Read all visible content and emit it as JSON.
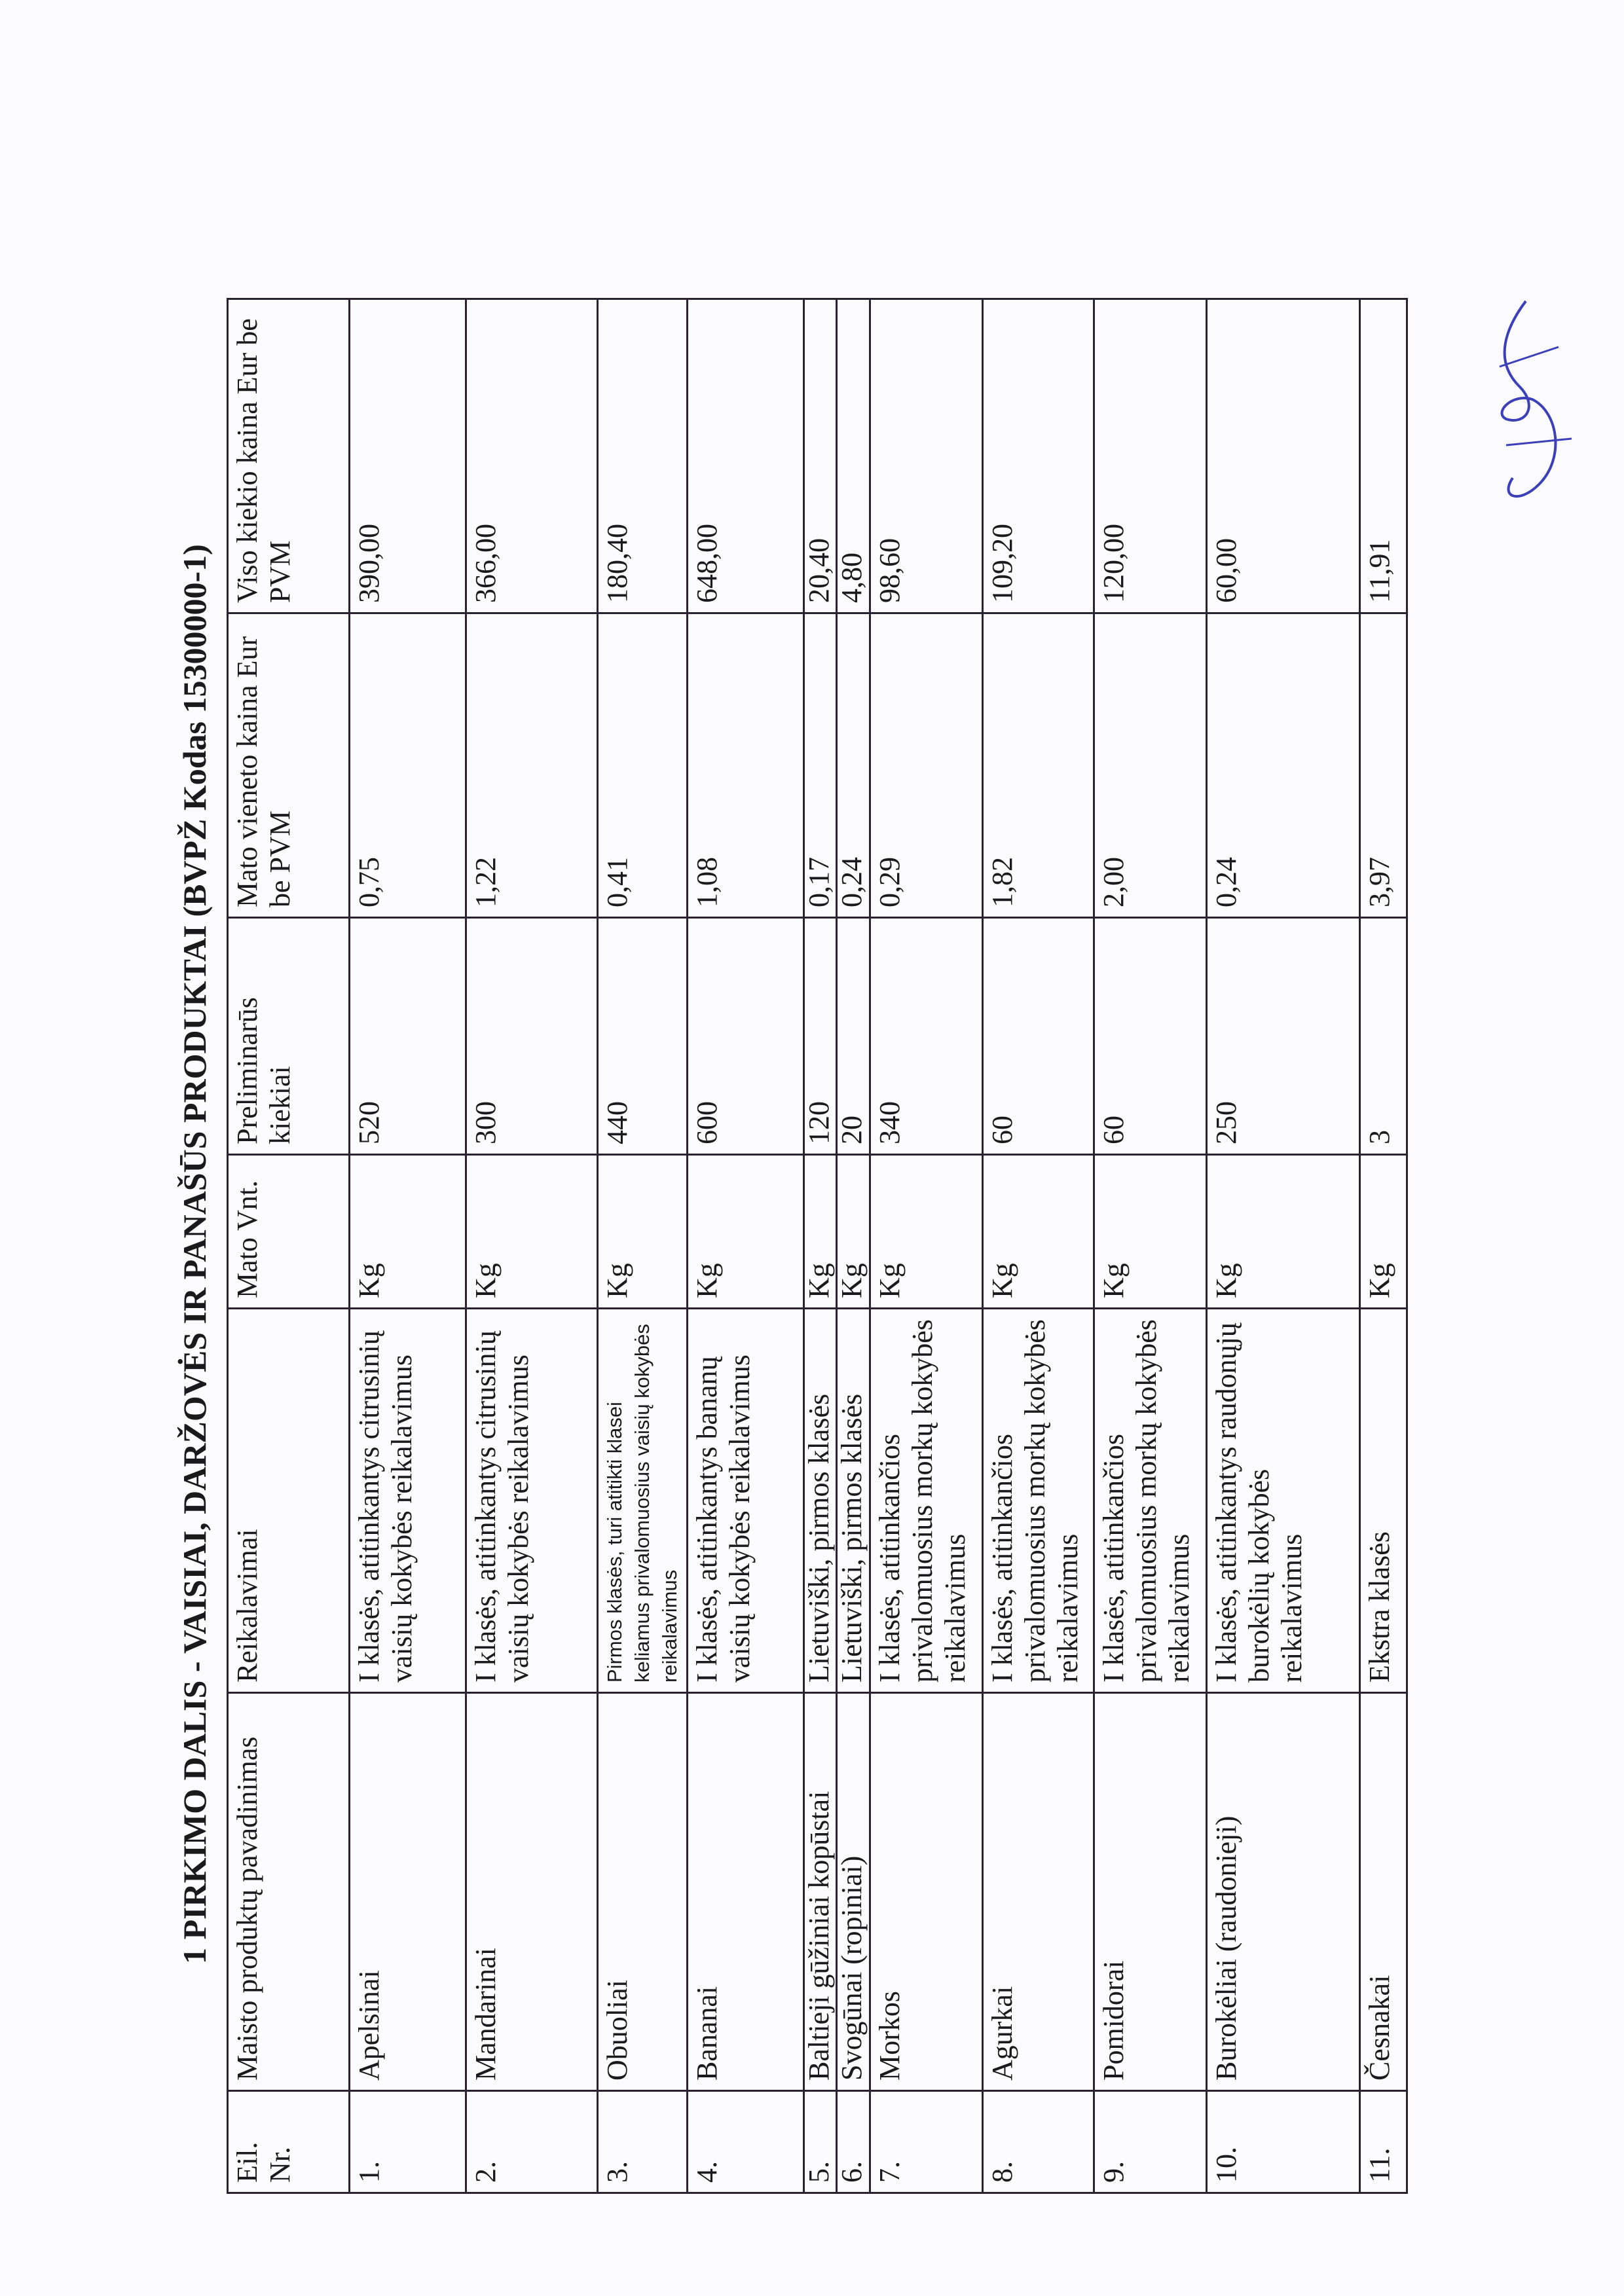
{
  "title": "1 PIRKIMO DALIS - VAISIAI, DARŽOVĖS IR PANAŠŪS PRODUKTAI  (BVPŽ Kodas 15300000-1)",
  "columns": [
    "Eil. Nr.",
    "Maisto produktų pavadinimas",
    "Reikalavimai",
    "Mato Vnt.",
    "Preliminarūs kiekiai",
    "Mato vieneto kaina Eur  be PVM",
    "Viso kiekio kaina Eur be  PVM"
  ],
  "rows": [
    {
      "nr": "1.",
      "name": "Apelsinai",
      "req": "I klasės, atitinkantys citrusinių vaisių kokybės reikalavimus",
      "unit": "Kg",
      "qty": "520",
      "unit_price": "0,75",
      "total": "390,00"
    },
    {
      "nr": "2.",
      "name": "Mandarinai",
      "req": "I klasės, atitinkantys citrusinių vaisių kokybės reikalavimus",
      "unit": "Kg",
      "qty": "300",
      "unit_price": "1,22",
      "total": "366,00"
    },
    {
      "nr": "3.",
      "name": "Obuoliai",
      "req": "Pirmos klasės, turi atitikti klasei keliamus privalomuosius vaisių kokybės reikalavimus",
      "unit": "Kg",
      "qty": "440",
      "unit_price": "0,41",
      "total": "180,40"
    },
    {
      "nr": "4.",
      "name": "Bananai",
      "req": "I klasės, atitinkantys bananų vaisių kokybės reikalavimus",
      "unit": "Kg",
      "qty": "600",
      "unit_price": "1,08",
      "total": "648,00"
    },
    {
      "nr": "5.",
      "name": "Baltieji gūžiniai kopūstai",
      "req": "Lietuviški, pirmos klasės",
      "unit": "Kg",
      "qty": "120",
      "unit_price": "0,17",
      "total": "20,40"
    },
    {
      "nr": "6.",
      "name": "Svogūnai (ropiniai)",
      "req": "Lietuviški, pirmos klasės",
      "unit": "Kg",
      "qty": "20",
      "unit_price": "0,24",
      "total": "4,80"
    },
    {
      "nr": "7.",
      "name": "Morkos",
      "req": "I klasės, atitinkančios privalomuosius morkų kokybės reikalavimus",
      "unit": "Kg",
      "qty": "340",
      "unit_price": "0,29",
      "total": "98,60"
    },
    {
      "nr": "8.",
      "name": "Agurkai",
      "req": "I klasės, atitinkančios privalomuosius morkų kokybės reikalavimus",
      "unit": "Kg",
      "qty": "60",
      "unit_price": "1,82",
      "total": "109,20"
    },
    {
      "nr": "9.",
      "name": "Pomidorai",
      "req": "I klasės, atitinkančios privalomuosius morkų kokybės reikalavimus",
      "unit": "Kg",
      "qty": "60",
      "unit_price": "2,00",
      "total": "120,00"
    },
    {
      "nr": "10.",
      "name": "Burokėliai (raudonieji)",
      "req": "I klasės, atitinkantys raudonųjų burokėlių kokybės reikalavimus",
      "unit": "Kg",
      "qty": "250",
      "unit_price": "0,24",
      "total": "60,00"
    },
    {
      "nr": "11.",
      "name": "Česnakai",
      "req": "Ekstra klasės",
      "unit": "Kg",
      "qty": "3",
      "unit_price": "3,97",
      "total": "11,91"
    }
  ],
  "colors": {
    "ink": "#1a1a1a",
    "rules": "#2a2230",
    "signature": "#3b3fb8"
  }
}
